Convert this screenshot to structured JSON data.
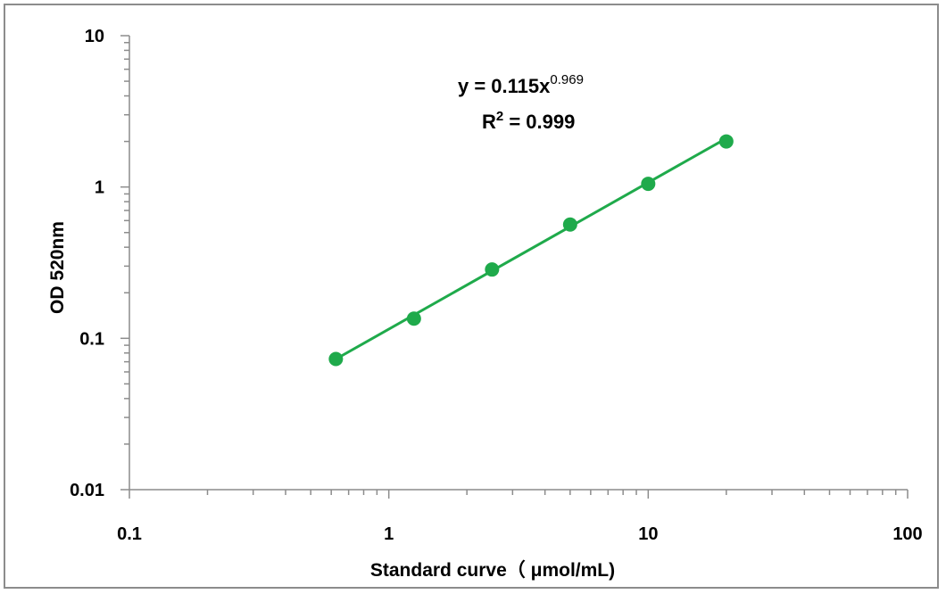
{
  "chart_data": {
    "type": "scatter",
    "title": "",
    "xlabel": "Standard curve（ μmol/mL)",
    "ylabel": "OD 520nm",
    "x_scale": "log",
    "y_scale": "log",
    "xlim": [
      0.1,
      100
    ],
    "ylim": [
      0.01,
      10
    ],
    "x_ticks": [
      "0.1",
      "1",
      "10",
      "100"
    ],
    "y_ticks": [
      "0.01",
      "0.1",
      "1",
      "10"
    ],
    "grid": false,
    "legend": "none",
    "series": [
      {
        "color": "#1faa4b",
        "x": [
          0.625,
          1.25,
          2.5,
          5,
          10,
          20
        ],
        "y": [
          0.073,
          0.135,
          0.285,
          0.565,
          1.05,
          2.0
        ],
        "trendline": {
          "type": "power",
          "a": 0.115,
          "b": 0.969
        }
      }
    ],
    "annotations": {
      "equation_prefix": "y = 0.115x",
      "equation_exponent": "0.969",
      "r2_prefix": "R",
      "r2_exponent": "2",
      "r2_value": " = 0.999"
    }
  }
}
